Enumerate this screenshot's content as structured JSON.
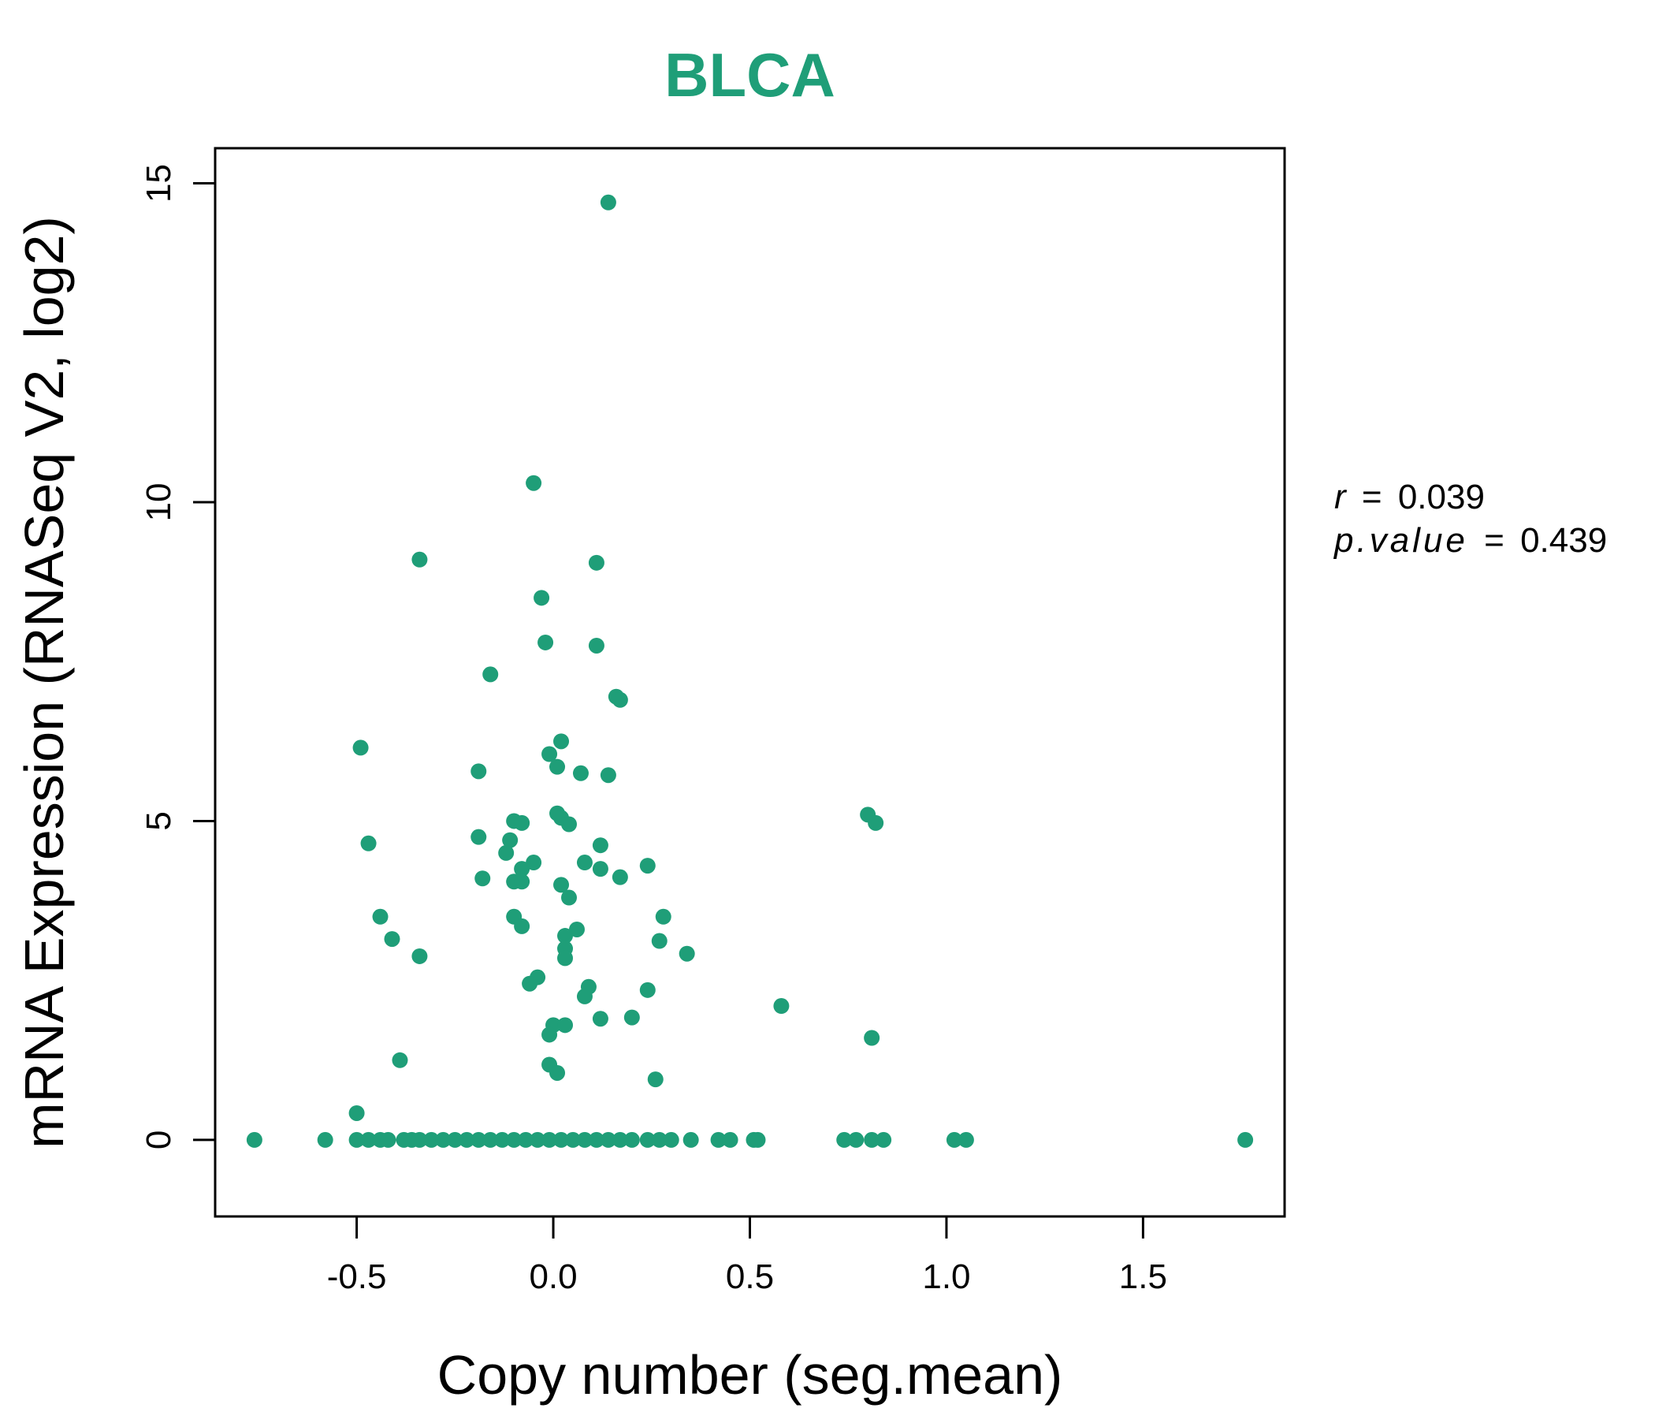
{
  "colors": {
    "accent": "#1f9e78",
    "axis": "#000000",
    "background": "#ffffff"
  },
  "chart_data": {
    "type": "scatter",
    "title": "BLCA",
    "xlabel": "Copy number (seg.mean)",
    "ylabel": "mRNA Expression (RNASeq V2, log2)",
    "xlim": [
      -0.86,
      1.86
    ],
    "ylim": [
      -1.2,
      15.55
    ],
    "xticks": [
      -0.5,
      0.0,
      0.5,
      1.0,
      1.5
    ],
    "xtick_labels": [
      "-0.5",
      "0.0",
      "0.5",
      "1.0",
      "1.5"
    ],
    "yticks": [
      0,
      5,
      10,
      15
    ],
    "ytick_labels": [
      "0",
      "5",
      "10",
      "15"
    ],
    "grid": false,
    "legend": "none",
    "annotation": {
      "r_label": "r",
      "r_value": "0.039",
      "p_label": "p.value",
      "p_value": "0.439",
      "separator": "="
    },
    "points": [
      [
        0.14,
        14.7
      ],
      [
        -0.05,
        10.3
      ],
      [
        -0.34,
        9.1
      ],
      [
        0.11,
        9.05
      ],
      [
        -0.03,
        8.5
      ],
      [
        -0.02,
        7.8
      ],
      [
        0.11,
        7.75
      ],
      [
        -0.16,
        7.3
      ],
      [
        0.16,
        6.95
      ],
      [
        0.17,
        6.9
      ],
      [
        -0.49,
        6.15
      ],
      [
        0.02,
        6.25
      ],
      [
        -0.01,
        6.05
      ],
      [
        0.01,
        5.85
      ],
      [
        0.07,
        5.75
      ],
      [
        0.14,
        5.72
      ],
      [
        -0.19,
        5.78
      ],
      [
        0.01,
        5.12
      ],
      [
        0.02,
        5.05
      ],
      [
        0.04,
        4.95
      ],
      [
        -0.1,
        5.0
      ],
      [
        -0.08,
        4.97
      ],
      [
        0.8,
        5.1
      ],
      [
        0.82,
        4.97
      ],
      [
        -0.47,
        4.65
      ],
      [
        -0.19,
        4.75
      ],
      [
        -0.11,
        4.7
      ],
      [
        -0.12,
        4.5
      ],
      [
        0.12,
        4.62
      ],
      [
        0.08,
        4.35
      ],
      [
        0.12,
        4.25
      ],
      [
        0.24,
        4.3
      ],
      [
        -0.05,
        4.35
      ],
      [
        -0.08,
        4.25
      ],
      [
        -0.18,
        4.1
      ],
      [
        -0.1,
        4.05
      ],
      [
        -0.08,
        4.05
      ],
      [
        0.17,
        4.12
      ],
      [
        0.02,
        4.0
      ],
      [
        0.04,
        3.8
      ],
      [
        -0.44,
        3.5
      ],
      [
        -0.1,
        3.5
      ],
      [
        0.28,
        3.5
      ],
      [
        -0.08,
        3.35
      ],
      [
        0.06,
        3.3
      ],
      [
        -0.41,
        3.15
      ],
      [
        0.03,
        3.2
      ],
      [
        0.27,
        3.12
      ],
      [
        0.03,
        3.0
      ],
      [
        0.34,
        2.92
      ],
      [
        -0.34,
        2.88
      ],
      [
        0.03,
        2.85
      ],
      [
        -0.04,
        2.55
      ],
      [
        -0.06,
        2.45
      ],
      [
        0.09,
        2.4
      ],
      [
        0.24,
        2.35
      ],
      [
        0.08,
        2.25
      ],
      [
        0.58,
        2.1
      ],
      [
        0.12,
        1.9
      ],
      [
        0.2,
        1.92
      ],
      [
        0.0,
        1.8
      ],
      [
        0.03,
        1.8
      ],
      [
        -0.01,
        1.65
      ],
      [
        0.81,
        1.6
      ],
      [
        -0.39,
        1.25
      ],
      [
        -0.01,
        1.18
      ],
      [
        0.01,
        1.05
      ],
      [
        0.26,
        0.95
      ],
      [
        -0.5,
        0.42
      ],
      [
        -0.76,
        0.0
      ],
      [
        -0.58,
        0.0
      ],
      [
        -0.5,
        0.0
      ],
      [
        -0.47,
        0.0
      ],
      [
        -0.44,
        0.0
      ],
      [
        -0.42,
        0.0
      ],
      [
        -0.38,
        0.0
      ],
      [
        -0.36,
        0.0
      ],
      [
        -0.34,
        0.0
      ],
      [
        -0.31,
        0.0
      ],
      [
        -0.28,
        0.0
      ],
      [
        -0.25,
        0.0
      ],
      [
        -0.22,
        0.0
      ],
      [
        -0.19,
        0.0
      ],
      [
        -0.16,
        0.0
      ],
      [
        -0.13,
        0.0
      ],
      [
        -0.1,
        0.0
      ],
      [
        -0.07,
        0.0
      ],
      [
        -0.04,
        0.0
      ],
      [
        -0.01,
        0.0
      ],
      [
        0.02,
        0.0
      ],
      [
        0.05,
        0.0
      ],
      [
        0.08,
        0.0
      ],
      [
        0.11,
        0.0
      ],
      [
        0.14,
        0.0
      ],
      [
        0.17,
        0.0
      ],
      [
        0.2,
        0.0
      ],
      [
        0.24,
        0.0
      ],
      [
        0.27,
        0.0
      ],
      [
        0.3,
        0.0
      ],
      [
        0.35,
        0.0
      ],
      [
        0.42,
        0.0
      ],
      [
        0.45,
        0.0
      ],
      [
        0.51,
        0.0
      ],
      [
        0.52,
        0.0
      ],
      [
        0.74,
        0.0
      ],
      [
        0.77,
        0.0
      ],
      [
        0.81,
        0.0
      ],
      [
        0.84,
        0.0
      ],
      [
        1.02,
        0.0
      ],
      [
        1.05,
        0.0
      ],
      [
        1.76,
        0.0
      ]
    ]
  }
}
